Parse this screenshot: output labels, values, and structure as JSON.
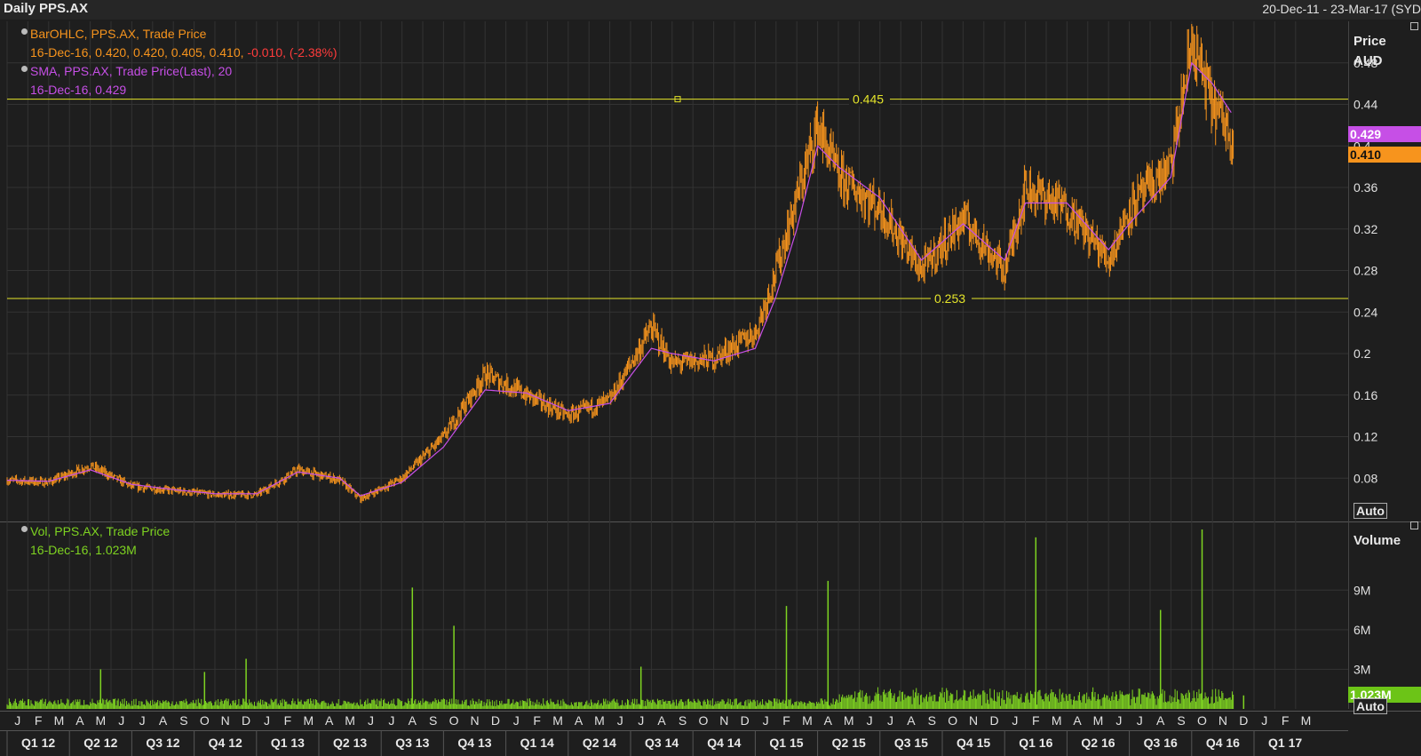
{
  "header": {
    "title": "Daily PPS.AX",
    "date_range": "20-Dec-11 - 23-Mar-17 (SYD"
  },
  "legends": {
    "ohlc": {
      "name": "BarOHLC, PPS.AX, Trade Price",
      "values": "16-Dec-16, 0.420, 0.420, 0.405, 0.410,",
      "change": "-0.010, (-2.38%)"
    },
    "sma": {
      "name": "SMA, PPS.AX, Trade Price(Last),  20",
      "values": "16-Dec-16, 0.429"
    },
    "vol": {
      "name": "Vol, PPS.AX, Trade Price",
      "values": "16-Dec-16, 1.023M"
    }
  },
  "axis_titles": {
    "price": [
      "Price",
      "AUD"
    ],
    "volume": "Volume"
  },
  "buttons": {
    "auto": "Auto"
  },
  "tags": {
    "sma": "0.429",
    "close": "0.410",
    "volume": "1.023M"
  },
  "colors": {
    "ohlc": "#f7941d",
    "sma": "#c64fe6",
    "volume": "#7ed321",
    "hline": "#e5e52a",
    "grid": "#333333"
  },
  "chart_data": [
    {
      "type": "line",
      "title": "Daily PPS.AX",
      "ylabel": "Price AUD",
      "ylim": [
        0.04,
        0.52
      ],
      "y_ticks": [
        0.08,
        0.12,
        0.16,
        0.2,
        0.24,
        0.28,
        0.32,
        0.36,
        0.4,
        0.44,
        0.48
      ],
      "y_tick_labels": [
        "0.08",
        "0.12",
        "0.16",
        "0.2",
        "0.24",
        "0.28",
        "0.32",
        "0.36",
        "0.4",
        "0.44",
        "0.48"
      ],
      "x_month_labels": [
        "J",
        "F",
        "M",
        "A",
        "M",
        "J",
        "J",
        "A",
        "S",
        "O",
        "N",
        "D",
        "J",
        "F",
        "M",
        "A",
        "M",
        "J",
        "J",
        "A",
        "S",
        "O",
        "N",
        "D",
        "J",
        "F",
        "M",
        "A",
        "M",
        "J",
        "J",
        "A",
        "S",
        "O",
        "N",
        "D",
        "J",
        "F",
        "M",
        "A",
        "M",
        "J",
        "J",
        "A",
        "S",
        "O",
        "N",
        "D",
        "J",
        "F",
        "M",
        "A",
        "M",
        "J",
        "J",
        "A",
        "S",
        "O",
        "N",
        "D",
        "J",
        "F",
        "M"
      ],
      "x_quarter_labels": [
        "Q1 12",
        "Q2 12",
        "Q3 12",
        "Q4 12",
        "Q1 13",
        "Q2 13",
        "Q3 13",
        "Q4 13",
        "Q1 14",
        "Q2 14",
        "Q3 14",
        "Q4 14",
        "Q1 15",
        "Q2 15",
        "Q3 15",
        "Q4 15",
        "Q1 16",
        "Q2 16",
        "Q3 16",
        "Q4 16",
        "Q1 17"
      ],
      "horizontal_lines": [
        {
          "value": 0.445,
          "label": "0.445"
        },
        {
          "value": 0.253,
          "label": "0.253"
        }
      ],
      "series": [
        {
          "name": "BarOHLC, PPS.AX, Trade Price",
          "x": [
            "2012-01",
            "2012-03",
            "2012-05",
            "2012-07",
            "2012-09",
            "2012-11",
            "2013-01",
            "2013-03",
            "2013-05",
            "2013-06",
            "2013-08",
            "2013-10",
            "2013-12",
            "2014-02",
            "2014-04",
            "2014-06",
            "2014-08",
            "2014-09",
            "2014-11",
            "2015-01",
            "2015-02",
            "2015-03",
            "2015-04",
            "2015-05",
            "2015-07",
            "2015-09",
            "2015-11",
            "2016-01",
            "2016-02",
            "2016-04",
            "2016-06",
            "2016-07",
            "2016-09",
            "2016-10",
            "2016-11",
            "2016-12"
          ],
          "values": [
            0.078,
            0.076,
            0.092,
            0.072,
            0.068,
            0.064,
            0.064,
            0.088,
            0.078,
            0.06,
            0.08,
            0.12,
            0.18,
            0.16,
            0.14,
            0.155,
            0.225,
            0.19,
            0.195,
            0.22,
            0.28,
            0.35,
            0.42,
            0.37,
            0.34,
            0.28,
            0.33,
            0.28,
            0.36,
            0.34,
            0.29,
            0.34,
            0.38,
            0.5,
            0.44,
            0.41
          ]
        },
        {
          "name": "SMA, PPS.AX, Trade Price(Last),  20",
          "x": [
            "2012-01",
            "2012-03",
            "2012-05",
            "2012-07",
            "2012-09",
            "2012-11",
            "2013-01",
            "2013-03",
            "2013-05",
            "2013-06",
            "2013-08",
            "2013-10",
            "2013-12",
            "2014-02",
            "2014-04",
            "2014-06",
            "2014-08",
            "2014-09",
            "2014-11",
            "2015-01",
            "2015-02",
            "2015-03",
            "2015-04",
            "2015-05",
            "2015-07",
            "2015-09",
            "2015-11",
            "2016-01",
            "2016-02",
            "2016-04",
            "2016-06",
            "2016-07",
            "2016-09",
            "2016-10",
            "2016-11",
            "2016-12"
          ],
          "values": [
            0.078,
            0.077,
            0.088,
            0.074,
            0.069,
            0.065,
            0.065,
            0.086,
            0.08,
            0.063,
            0.076,
            0.11,
            0.165,
            0.162,
            0.145,
            0.152,
            0.205,
            0.2,
            0.193,
            0.205,
            0.255,
            0.32,
            0.4,
            0.38,
            0.35,
            0.29,
            0.325,
            0.29,
            0.345,
            0.345,
            0.3,
            0.325,
            0.37,
            0.48,
            0.46,
            0.429
          ]
        }
      ]
    },
    {
      "type": "bar",
      "title": "Vol, PPS.AX, Trade Price",
      "ylabel": "Volume",
      "ylim": [
        0,
        14000000
      ],
      "y_ticks": [
        3000000,
        6000000,
        9000000
      ],
      "y_tick_labels": [
        "3M",
        "6M",
        "9M"
      ],
      "series": [
        {
          "name": "Vol, PPS.AX, Trade Price",
          "x": [
            "2012-05",
            "2012-10",
            "2012-12",
            "2013-08",
            "2013-10",
            "2014-07",
            "2015-02",
            "2015-04",
            "2016-02",
            "2016-08",
            "2016-10",
            "2016-12"
          ],
          "values": [
            3000000,
            2800000,
            3800000,
            9200000,
            6300000,
            3200000,
            7800000,
            9700000,
            13000000,
            7500000,
            13600000,
            1023000
          ]
        }
      ]
    }
  ]
}
